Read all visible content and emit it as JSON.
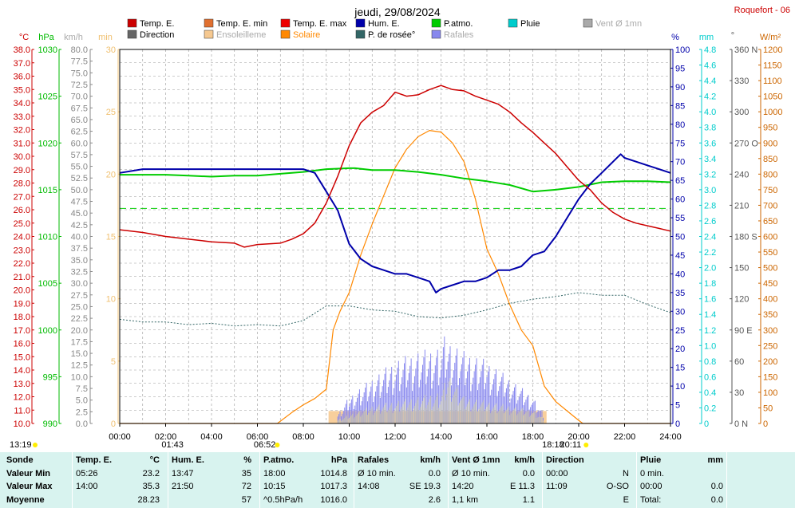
{
  "title": "jeudi, 29/08/2024",
  "station": "Roquefort - 06",
  "legend": [
    {
      "label": "Temp. E.",
      "color": "#cc0000",
      "row": 0,
      "col": 0
    },
    {
      "label": "Temp. E. min",
      "color": "#e07030",
      "row": 0,
      "col": 1
    },
    {
      "label": "Temp. E. max",
      "color": "#ee0000",
      "row": 0,
      "col": 2
    },
    {
      "label": "Hum. E.",
      "color": "#0000aa",
      "row": 0,
      "col": 3
    },
    {
      "label": "P.atmo.",
      "color": "#00cc00",
      "row": 0,
      "col": 4
    },
    {
      "label": "Pluie",
      "color": "#00cccc",
      "row": 0,
      "col": 5
    },
    {
      "label": "Vent Ø 1mn",
      "color": "#aaaaaa",
      "row": 0,
      "col": 6
    },
    {
      "label": "Direction",
      "color": "#666666",
      "row": 1,
      "col": 0
    },
    {
      "label": "Ensoleilleme",
      "color": "#f5c890",
      "row": 1,
      "col": 1
    },
    {
      "label": "Solaire",
      "color": "#ff8800",
      "row": 1,
      "col": 2
    },
    {
      "label": "P. de rosée°",
      "color": "#336666",
      "row": 1,
      "col": 3
    },
    {
      "label": "Rafales",
      "color": "#8888ee",
      "row": 1,
      "col": 4
    }
  ],
  "axis_units": {
    "temp": "°C",
    "press": "hPa",
    "wind": "km/h",
    "min": "min",
    "hum": "%",
    "rain": "mm",
    "dir": "°",
    "solar": "W/m²"
  },
  "axis_ticks": {
    "temp": [
      "38.0",
      "37.0",
      "36.0",
      "35.0",
      "34.0",
      "33.0",
      "32.0",
      "31.0",
      "30.0",
      "29.0",
      "28.0",
      "27.0",
      "26.0",
      "25.0",
      "24.0",
      "23.0",
      "22.0",
      "21.0",
      "20.0",
      "19.0",
      "18.0",
      "17.0",
      "16.0",
      "15.0",
      "14.0",
      "13.0",
      "12.0",
      "11.0",
      "10.0"
    ],
    "press": [
      "1030",
      "1025",
      "1020",
      "1015",
      "1010",
      "1005",
      "1000",
      "995",
      "990"
    ],
    "wind": [
      "80.0",
      "77.5",
      "75.0",
      "72.5",
      "70.0",
      "67.5",
      "65.0",
      "62.5",
      "60.0",
      "57.5",
      "55.0",
      "52.5",
      "50.0",
      "47.5",
      "45.0",
      "42.5",
      "40.0",
      "37.5",
      "35.0",
      "32.5",
      "30.0",
      "27.5",
      "25.0",
      "22.5",
      "20.0",
      "17.5",
      "15.0",
      "12.5",
      "10.0",
      "7.5",
      "5.0",
      "2.5",
      "0.0"
    ],
    "min": [
      "30",
      "25",
      "20",
      "15",
      "10",
      "5",
      "0"
    ],
    "hum": [
      "100",
      "95",
      "90",
      "85",
      "80",
      "75",
      "70",
      "65",
      "60",
      "55",
      "50",
      "45",
      "40",
      "35",
      "30",
      "25",
      "20",
      "15",
      "10",
      "5",
      "0"
    ],
    "rain": [
      "4.8",
      "4.6",
      "4.4",
      "4.2",
      "4.0",
      "3.8",
      "3.6",
      "3.4",
      "3.2",
      "3.0",
      "2.8",
      "2.6",
      "2.4",
      "2.2",
      "2.0",
      "1.8",
      "1.6",
      "1.4",
      "1.2",
      "1.0",
      "0.8",
      "0.6",
      "0.4",
      "0.2",
      "0"
    ],
    "dir": [
      "360 N",
      "330",
      "300",
      "270 O",
      "240",
      "210",
      "180 S",
      "150",
      "120",
      "90 E",
      "60",
      "30",
      "0 N"
    ],
    "solar": [
      "1200",
      "1150",
      "1100",
      "1050",
      "1000",
      "950",
      "900",
      "850",
      "800",
      "750",
      "700",
      "650",
      "600",
      "550",
      "500",
      "450",
      "400",
      "350",
      "300",
      "250",
      "200",
      "150",
      "100",
      "50",
      "0"
    ]
  },
  "x_ticks": [
    "00:00",
    "02:00",
    "04:00",
    "06:00",
    "08:00",
    "10:00",
    "12:00",
    "14:00",
    "16:00",
    "18:00",
    "20:00",
    "22:00",
    "24:00"
  ],
  "sun_events": {
    "moonrise": "13:19",
    "moonset": "01:43",
    "sunrise": "06:52",
    "moon2": "18:18",
    "sunset": "20:11"
  },
  "chart_data": {
    "type": "line",
    "title": "jeudi, 29/08/2024",
    "x_unit": "hour",
    "xlim": [
      0,
      24
    ],
    "series": [
      {
        "name": "Temp. E.",
        "axis": "°C",
        "ylim": [
          10,
          38
        ],
        "x": [
          0,
          1,
          2,
          3,
          4,
          5,
          5.43,
          6,
          7,
          7.5,
          8,
          8.5,
          9,
          9.5,
          10,
          10.5,
          11,
          11.5,
          12,
          12.5,
          13,
          13.5,
          14,
          14.5,
          15,
          15.5,
          16,
          16.5,
          17,
          17.5,
          18,
          18.5,
          19,
          19.5,
          20,
          20.5,
          21,
          21.5,
          22,
          22.5,
          23,
          23.5,
          24
        ],
        "y": [
          24.5,
          24.3,
          24.0,
          23.8,
          23.6,
          23.5,
          23.2,
          23.4,
          23.5,
          23.8,
          24.2,
          25.0,
          26.5,
          28.5,
          30.8,
          32.5,
          33.3,
          33.8,
          34.8,
          34.5,
          34.6,
          35.0,
          35.3,
          35.0,
          34.9,
          34.5,
          34.2,
          33.9,
          33.3,
          32.5,
          31.8,
          31.0,
          30.2,
          29.2,
          28.2,
          27.5,
          26.5,
          25.8,
          25.3,
          25.0,
          24.8,
          24.6,
          24.4
        ]
      },
      {
        "name": "Hum. E.",
        "axis": "%",
        "ylim": [
          0,
          100
        ],
        "x": [
          0,
          1,
          2,
          3,
          4,
          5,
          6,
          7,
          8,
          8.5,
          9,
          9.5,
          10,
          10.5,
          11,
          11.5,
          12,
          12.5,
          13,
          13.5,
          13.78,
          14,
          14.5,
          15,
          15.5,
          16,
          16.5,
          17,
          17.5,
          18,
          18.5,
          19,
          19.5,
          20,
          20.5,
          21,
          21.5,
          21.83,
          22,
          22.5,
          23,
          23.5,
          24
        ],
        "y": [
          67,
          68,
          68,
          68,
          68,
          68,
          68,
          68,
          68,
          67,
          62,
          57,
          48,
          44,
          42,
          41,
          40,
          40,
          39,
          38,
          35,
          36,
          37,
          38,
          38,
          39,
          41,
          41,
          42,
          45,
          46,
          50,
          55,
          60,
          64,
          67,
          70,
          72,
          71,
          70,
          69,
          68,
          67
        ]
      },
      {
        "name": "P.atmo.",
        "axis": "hPa",
        "ylim": [
          990,
          1030
        ],
        "x": [
          0,
          1,
          2,
          3,
          4,
          5,
          6,
          7,
          8,
          9,
          10,
          10.25,
          11,
          12,
          13,
          14,
          15,
          16,
          17,
          18,
          19,
          20,
          21,
          22,
          23,
          24
        ],
        "y": [
          1016.6,
          1016.6,
          1016.6,
          1016.5,
          1016.4,
          1016.5,
          1016.5,
          1016.7,
          1016.9,
          1017.2,
          1017.3,
          1017.3,
          1017.1,
          1017.1,
          1016.9,
          1016.6,
          1016.2,
          1015.9,
          1015.5,
          1014.8,
          1015.0,
          1015.3,
          1015.8,
          1015.9,
          1015.9,
          1015.8
        ]
      },
      {
        "name": "P. de rosée°",
        "axis": "°C",
        "ylim": [
          10,
          38
        ],
        "x": [
          0,
          1,
          2,
          3,
          4,
          5,
          6,
          7,
          8,
          9,
          10,
          11,
          12,
          13,
          14,
          15,
          16,
          17,
          18,
          19,
          20,
          21,
          22,
          23,
          24
        ],
        "y": [
          17.8,
          17.6,
          17.6,
          17.4,
          17.5,
          17.3,
          17.4,
          17.3,
          17.7,
          18.8,
          18.8,
          18.5,
          18.4,
          18.0,
          17.9,
          18.1,
          18.5,
          19.0,
          19.3,
          19.5,
          19.8,
          19.6,
          19.6,
          18.9,
          18.3
        ]
      },
      {
        "name": "Solaire",
        "axis": "W/m²",
        "ylim": [
          0,
          1200
        ],
        "x": [
          0,
          6.87,
          7.5,
          8,
          8.5,
          9,
          9.3,
          9.6,
          10,
          10.5,
          11,
          11.5,
          12,
          12.5,
          13,
          13.5,
          14,
          14.5,
          15,
          15.5,
          16,
          16.5,
          17,
          17.5,
          18,
          18.5,
          19,
          19.5,
          20,
          20.18,
          24
        ],
        "y": [
          0,
          0,
          35,
          60,
          80,
          110,
          300,
          360,
          420,
          540,
          640,
          730,
          820,
          880,
          920,
          940,
          935,
          900,
          840,
          720,
          560,
          480,
          380,
          300,
          250,
          120,
          70,
          40,
          10,
          0,
          0
        ]
      },
      {
        "name": "Vent Ø 1mn",
        "axis": "km/h",
        "ylim": [
          0,
          80
        ],
        "x": [
          9.5,
          10,
          11,
          12,
          13,
          14,
          14.33,
          15,
          16,
          17,
          18,
          18.5
        ],
        "y": [
          0.8,
          2,
          4,
          5,
          6,
          7,
          11.3,
          6,
          5,
          4,
          3,
          1
        ]
      },
      {
        "name": "Rafales",
        "axis": "km/h",
        "ylim": [
          0,
          80
        ],
        "x": [
          9.5,
          10,
          11,
          12,
          13,
          14,
          14.13,
          15,
          16,
          17,
          18,
          18.5
        ],
        "y": [
          2,
          6,
          10,
          14,
          16,
          17,
          19.3,
          16,
          14,
          10,
          6,
          2
        ]
      },
      {
        "name": "Ensoleilleme",
        "axis": "min",
        "ylim": [
          0,
          30
        ],
        "x": [
          9.1,
          18.6
        ],
        "y": [
          1,
          1
        ]
      }
    ]
  },
  "table": {
    "headers": [
      "Sonde",
      "Temp. E.",
      "°C",
      "Hum. E.",
      "%",
      "P.atmo.",
      "hPa",
      "Rafales",
      "km/h",
      "Vent Ø 1mn",
      "km/h",
      "Direction",
      "",
      "Pluie",
      "mm"
    ],
    "rows": [
      [
        "Valeur Min",
        "05:26",
        "23.2",
        "13:47",
        "35",
        "18:00",
        "1014.8",
        "Ø 10 min.",
        "0.0",
        "Ø 10 min.",
        "0.0",
        "00:00",
        "N",
        "0 min.",
        ""
      ],
      [
        "Valeur Max",
        "14:00",
        "35.3",
        "21:50",
        "72",
        "10:15",
        "1017.3",
        "14:08",
        "SE 19.3",
        "14:20",
        "E 11.3",
        "11:09",
        "O-SO",
        "00:00",
        "0.0"
      ],
      [
        "Moyenne",
        "",
        "28.23",
        "",
        "57",
        "^0.5hPa/h",
        "1016.0",
        "",
        "2.6",
        "1,1 km",
        "1.1",
        "",
        "E",
        "Total:",
        "0.0"
      ]
    ]
  }
}
